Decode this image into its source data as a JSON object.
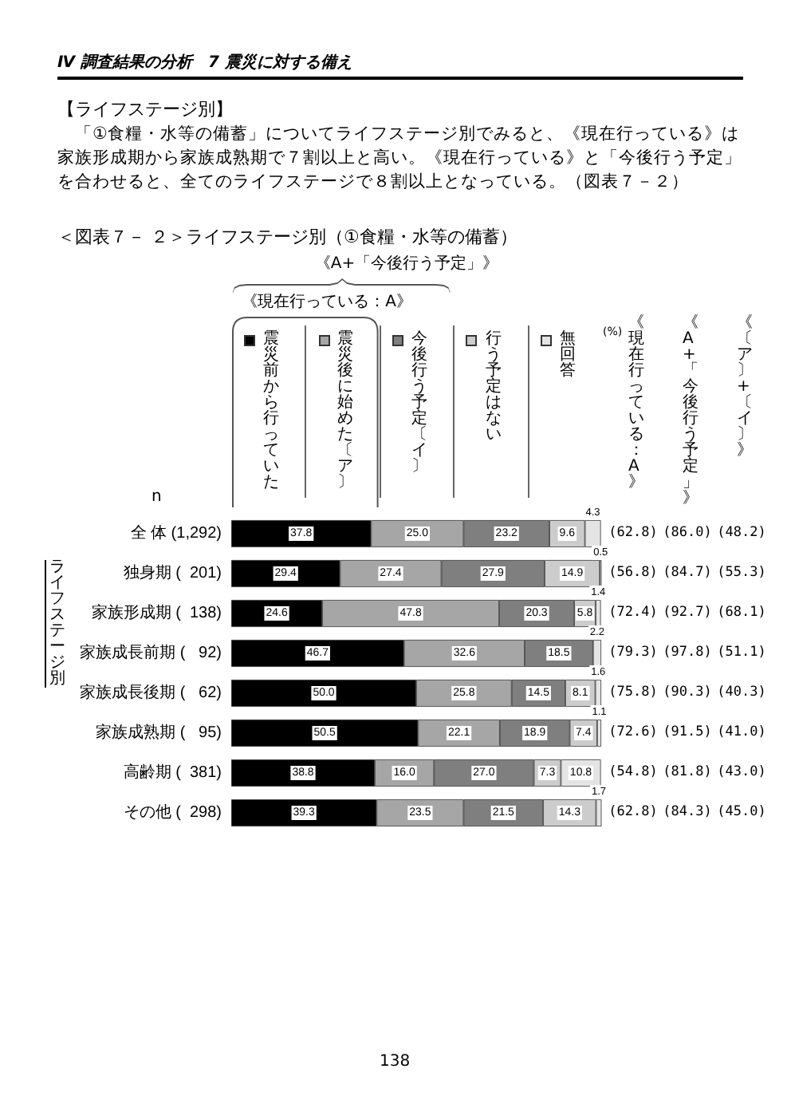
{
  "chart_data": {
    "type": "bar",
    "orientation": "horizontal",
    "stacked": true,
    "title": "＜図表７－ ２＞ライフステージ別（①食糧・水等の備蓄）",
    "categories": [
      "全 体 (1,292)",
      "独身期 (  201)",
      "家族形成期 (  138)",
      "家族成長前期 (   92)",
      "家族成長後期 (   62)",
      "家族成熟期 (   95)",
      "高齢期 (  381)",
      "その他 (  298)"
    ],
    "series": [
      {
        "name": "震災前から行っていた",
        "color": "#000000",
        "values": [
          37.8,
          29.4,
          24.6,
          46.7,
          50.0,
          50.5,
          38.8,
          39.3
        ],
        "value_labels": [
          "37.8",
          "29.4",
          "24.6",
          "46.7",
          "50.0",
          "50.5",
          "38.8",
          "39.3"
        ]
      },
      {
        "name": "震災後に始めた〔ア〕",
        "color": "#a6a6a6",
        "values": [
          25.0,
          27.4,
          47.8,
          32.6,
          25.8,
          22.1,
          16.0,
          23.5
        ],
        "value_labels": [
          "25.0",
          "27.4",
          "47.8",
          "32.6",
          "25.8",
          "22.1",
          "16.0",
          "23.5"
        ]
      },
      {
        "name": "今後行う予定〔イ〕",
        "color": "#7f7f7f",
        "values": [
          23.2,
          27.9,
          20.3,
          18.5,
          14.5,
          18.9,
          27.0,
          21.5
        ],
        "value_labels": [
          "23.2",
          "27.9",
          "20.3",
          "18.5",
          "14.5",
          "18.9",
          "27.0",
          "21.5"
        ]
      },
      {
        "name": "行う予定はない",
        "color": "#cccccc",
        "values": [
          9.6,
          14.9,
          5.8,
          null,
          8.1,
          7.4,
          7.3,
          14.3
        ],
        "value_labels": [
          "9.6",
          "14.9",
          "5.8",
          null,
          "8.1",
          "7.4",
          "7.3",
          "14.3"
        ]
      },
      {
        "name": "無回答",
        "color": "#e4e4e4",
        "values": [
          4.3,
          0.5,
          1.4,
          2.2,
          1.6,
          1.1,
          10.8,
          1.7
        ],
        "value_labels": [
          "4.3",
          "0.5",
          "1.4",
          "2.2",
          "1.6",
          "1.1",
          "10.8",
          "1.7"
        ]
      }
    ],
    "xlim": [
      0,
      100
    ],
    "tick_labels": "y",
    "legend": "top",
    "annotations": [
      "Ⅳ 調査結果の分析　7 震災に対する備え",
      "【ライフステージ別】",
      "「①食糧・水等の備蓄」についてライフステージ別でみると、《現在行っている》は家族形成期から家族成熟期で７割以上と高い。《現在行っている》と「今後行う予定」を合わせると、全てのライフステージで８割以上となっている。（図表７－２）",
      "《A+「今後行う予定」》",
      "《現在行っている：A》",
      "n",
      "(%)",
      "ライフステージ別",
      "《現在行っている：A》",
      "《A+「今後行う予定」》",
      "《〔ア〕+〔イ〕》",
      "(62.8)",
      "(86.0)",
      "(48.2)",
      "(56.8)",
      "(84.7)",
      "(55.3)",
      "(72.4)",
      "(92.7)",
      "(68.1)",
      "(79.3)",
      "(97.8)",
      "(51.1)",
      "(75.8)",
      "(90.3)",
      "(40.3)",
      "(72.6)",
      "(91.5)",
      "(41.0)",
      "(54.8)",
      "(81.8)",
      "(43.0)",
      "(62.8)",
      "(84.3)",
      "(45.0)",
      "138"
    ]
  }
}
